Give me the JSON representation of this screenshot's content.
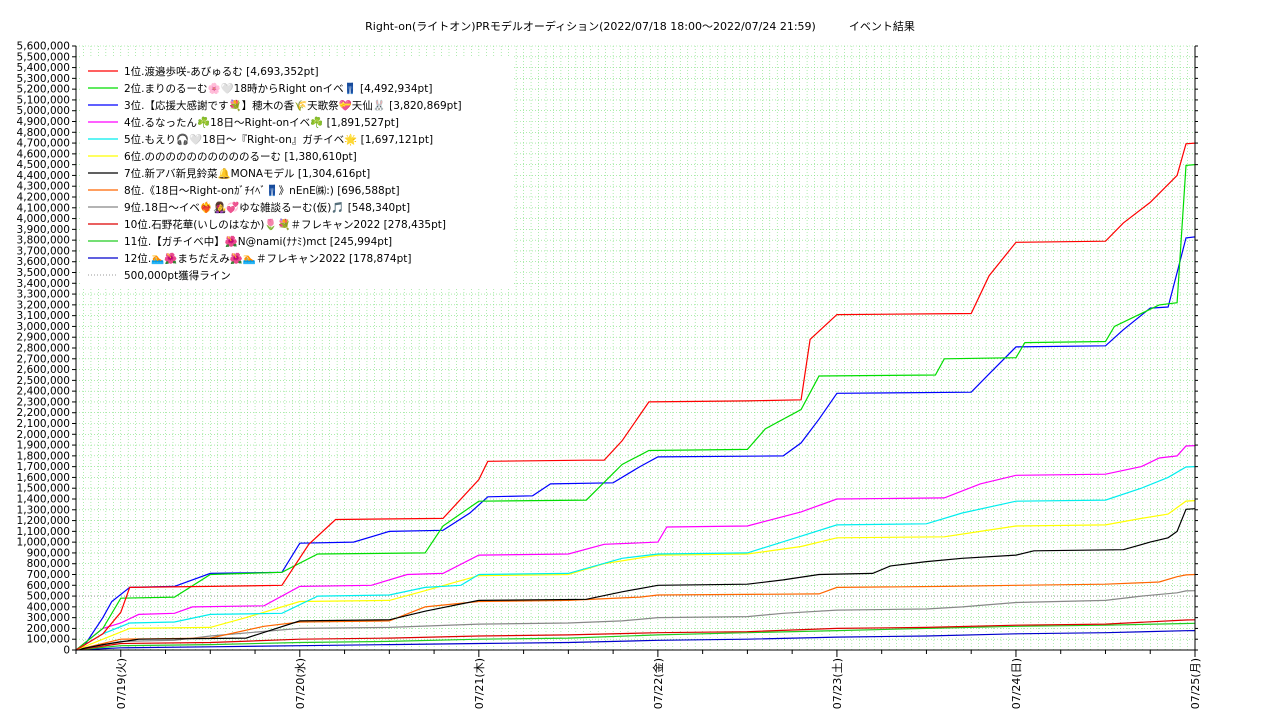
{
  "chart_data": {
    "type": "line",
    "title": "Right-on(ライトオン)PRモデルオーディション(2022/07/18 18:00～2022/07/24 21:59)　　　イベント結果",
    "xlabel": "",
    "ylabel": "",
    "x_ticks": [
      "07/19(火)",
      "07/20(水)",
      "07/21(木)",
      "07/22(金)",
      "07/23(土)",
      "07/24(日)",
      "07/25(月)"
    ],
    "xlim_days": [
      -0.25,
      6
    ],
    "ylim": [
      0,
      5600000
    ],
    "y_step": 100000,
    "grid": true,
    "legend_position": "top-left",
    "reference_line": {
      "label": "500,000pt獲得ライン",
      "value": 500000,
      "color": "#999999"
    },
    "series": [
      {
        "name": "1位.渡邉歩咲-あびゅるむ [4,693,352pt]",
        "color": "#ff0000",
        "points": [
          [
            -0.25,
            0
          ],
          [
            -0.2,
            50000
          ],
          [
            -0.1,
            150000
          ],
          [
            0,
            350000
          ],
          [
            0.05,
            580000
          ],
          [
            0.5,
            590000
          ],
          [
            0.9,
            600000
          ],
          [
            1.05,
            980000
          ],
          [
            1.2,
            1210000
          ],
          [
            1.8,
            1220000
          ],
          [
            2.0,
            1580000
          ],
          [
            2.05,
            1750000
          ],
          [
            2.6,
            1760000
          ],
          [
            2.7,
            1760000
          ],
          [
            2.8,
            1940000
          ],
          [
            2.95,
            2300000
          ],
          [
            3.5,
            2310000
          ],
          [
            3.8,
            2320000
          ],
          [
            3.85,
            2880000
          ],
          [
            4.0,
            3110000
          ],
          [
            4.75,
            3120000
          ],
          [
            4.85,
            3470000
          ],
          [
            5.0,
            3780000
          ],
          [
            5.5,
            3790000
          ],
          [
            5.6,
            3960000
          ],
          [
            5.75,
            4150000
          ],
          [
            5.9,
            4400000
          ],
          [
            5.95,
            4693352
          ],
          [
            6,
            4700000
          ]
        ]
      },
      {
        "name": "2位.まりのるーむ🌸🤍18時からRight onイベ👖 [4,492,934pt]",
        "color": "#00dd00",
        "points": [
          [
            -0.25,
            0
          ],
          [
            -0.1,
            200000
          ],
          [
            0,
            480000
          ],
          [
            0.3,
            490000
          ],
          [
            0.5,
            700000
          ],
          [
            0.9,
            720000
          ],
          [
            1.1,
            890000
          ],
          [
            1.7,
            900000
          ],
          [
            1.8,
            1150000
          ],
          [
            2.0,
            1380000
          ],
          [
            2.6,
            1390000
          ],
          [
            2.8,
            1720000
          ],
          [
            2.95,
            1850000
          ],
          [
            3.5,
            1860000
          ],
          [
            3.6,
            2050000
          ],
          [
            3.8,
            2230000
          ],
          [
            3.9,
            2540000
          ],
          [
            4.55,
            2550000
          ],
          [
            4.6,
            2700000
          ],
          [
            5.0,
            2710000
          ],
          [
            5.05,
            2850000
          ],
          [
            5.5,
            2860000
          ],
          [
            5.55,
            3000000
          ],
          [
            5.8,
            3200000
          ],
          [
            5.9,
            3220000
          ],
          [
            5.95,
            4492934
          ],
          [
            6,
            4500000
          ]
        ]
      },
      {
        "name": "3位.【応援大感謝です💐】穂木の香🌾天歌祭💝天仙🐰 [3,820,869pt]",
        "color": "#0000ff",
        "points": [
          [
            -0.25,
            0
          ],
          [
            -0.2,
            50000
          ],
          [
            -0.1,
            300000
          ],
          [
            -0.05,
            450000
          ],
          [
            0.05,
            580000
          ],
          [
            0.3,
            590000
          ],
          [
            0.5,
            710000
          ],
          [
            0.9,
            720000
          ],
          [
            1.0,
            990000
          ],
          [
            1.3,
            1000000
          ],
          [
            1.5,
            1100000
          ],
          [
            1.8,
            1110000
          ],
          [
            1.95,
            1270000
          ],
          [
            2.05,
            1420000
          ],
          [
            2.3,
            1430000
          ],
          [
            2.4,
            1540000
          ],
          [
            2.75,
            1550000
          ],
          [
            2.9,
            1700000
          ],
          [
            3.0,
            1790000
          ],
          [
            3.7,
            1800000
          ],
          [
            3.8,
            1920000
          ],
          [
            3.9,
            2140000
          ],
          [
            4.0,
            2380000
          ],
          [
            4.75,
            2390000
          ],
          [
            4.85,
            2560000
          ],
          [
            5.0,
            2810000
          ],
          [
            5.5,
            2820000
          ],
          [
            5.6,
            2970000
          ],
          [
            5.75,
            3170000
          ],
          [
            5.85,
            3180000
          ],
          [
            5.9,
            3500000
          ],
          [
            5.95,
            3820869
          ],
          [
            6,
            3830000
          ]
        ]
      },
      {
        "name": "4位.るなったん☘️18日～Right-onイベ☘️ [1,891,527pt]",
        "color": "#ff00ff",
        "points": [
          [
            -0.25,
            0
          ],
          [
            -0.1,
            200000
          ],
          [
            0,
            250000
          ],
          [
            0.1,
            330000
          ],
          [
            0.3,
            340000
          ],
          [
            0.4,
            400000
          ],
          [
            0.8,
            410000
          ],
          [
            1.0,
            590000
          ],
          [
            1.4,
            600000
          ],
          [
            1.6,
            700000
          ],
          [
            1.8,
            710000
          ],
          [
            2.0,
            880000
          ],
          [
            2.5,
            890000
          ],
          [
            2.7,
            980000
          ],
          [
            3.0,
            1000000
          ],
          [
            3.05,
            1140000
          ],
          [
            3.5,
            1150000
          ],
          [
            3.8,
            1280000
          ],
          [
            4.0,
            1400000
          ],
          [
            4.6,
            1410000
          ],
          [
            4.8,
            1540000
          ],
          [
            5.0,
            1620000
          ],
          [
            5.5,
            1630000
          ],
          [
            5.7,
            1700000
          ],
          [
            5.8,
            1780000
          ],
          [
            5.9,
            1800000
          ],
          [
            5.95,
            1891527
          ],
          [
            6,
            1895000
          ]
        ]
      },
      {
        "name": "5位.もえり🎧🤍18日～『Right-on』ガチイベ🌟 [1,697,121pt]",
        "color": "#00eeee",
        "points": [
          [
            -0.25,
            0
          ],
          [
            -0.1,
            150000
          ],
          [
            0.05,
            250000
          ],
          [
            0.3,
            260000
          ],
          [
            0.5,
            330000
          ],
          [
            0.9,
            340000
          ],
          [
            1.1,
            500000
          ],
          [
            1.5,
            510000
          ],
          [
            1.7,
            580000
          ],
          [
            1.9,
            600000
          ],
          [
            2.0,
            700000
          ],
          [
            2.5,
            710000
          ],
          [
            2.8,
            850000
          ],
          [
            3.0,
            890000
          ],
          [
            3.5,
            900000
          ],
          [
            3.75,
            1030000
          ],
          [
            4.0,
            1160000
          ],
          [
            4.5,
            1170000
          ],
          [
            4.7,
            1270000
          ],
          [
            5.0,
            1380000
          ],
          [
            5.5,
            1390000
          ],
          [
            5.7,
            1500000
          ],
          [
            5.85,
            1600000
          ],
          [
            5.95,
            1697121
          ],
          [
            6,
            1700000
          ]
        ]
      },
      {
        "name": "6位.ののののののののののるーむ [1,380,610pt]",
        "color": "#ffff00",
        "points": [
          [
            -0.25,
            0
          ],
          [
            -0.1,
            100000
          ],
          [
            0.05,
            200000
          ],
          [
            0.5,
            210000
          ],
          [
            0.7,
            300000
          ],
          [
            1.0,
            450000
          ],
          [
            1.5,
            460000
          ],
          [
            1.7,
            550000
          ],
          [
            2.0,
            690000
          ],
          [
            2.5,
            700000
          ],
          [
            2.7,
            800000
          ],
          [
            3.0,
            880000
          ],
          [
            3.5,
            890000
          ],
          [
            3.8,
            960000
          ],
          [
            4.0,
            1040000
          ],
          [
            4.6,
            1050000
          ],
          [
            4.8,
            1100000
          ],
          [
            5.0,
            1150000
          ],
          [
            5.5,
            1160000
          ],
          [
            5.7,
            1220000
          ],
          [
            5.85,
            1260000
          ],
          [
            5.95,
            1380610
          ],
          [
            6,
            1385000
          ]
        ]
      },
      {
        "name": "7位.新アバ新見鈴菜🔔MONAモデル [1,304,616pt]",
        "color": "#000000",
        "points": [
          [
            -0.25,
            0
          ],
          [
            -0.1,
            50000
          ],
          [
            0.1,
            100000
          ],
          [
            0.7,
            110000
          ],
          [
            1.0,
            270000
          ],
          [
            1.5,
            280000
          ],
          [
            1.7,
            360000
          ],
          [
            2.0,
            460000
          ],
          [
            2.6,
            470000
          ],
          [
            2.8,
            540000
          ],
          [
            3.0,
            600000
          ],
          [
            3.5,
            610000
          ],
          [
            3.7,
            650000
          ],
          [
            3.9,
            700000
          ],
          [
            4.2,
            710000
          ],
          [
            4.3,
            780000
          ],
          [
            4.5,
            820000
          ],
          [
            4.7,
            850000
          ],
          [
            5.0,
            880000
          ],
          [
            5.1,
            920000
          ],
          [
            5.6,
            930000
          ],
          [
            5.75,
            1000000
          ],
          [
            5.85,
            1040000
          ],
          [
            5.9,
            1100000
          ],
          [
            5.95,
            1304616
          ],
          [
            6,
            1310000
          ]
        ]
      },
      {
        "name": "8位.《18日～Right-onｶﾞﾁｲﾍﾞ👖》nEnE㈱:) [696,588pt]",
        "color": "#ff6600",
        "points": [
          [
            -0.25,
            0
          ],
          [
            0,
            100000
          ],
          [
            0.5,
            110000
          ],
          [
            0.8,
            220000
          ],
          [
            1.0,
            260000
          ],
          [
            1.5,
            270000
          ],
          [
            1.7,
            400000
          ],
          [
            2.0,
            450000
          ],
          [
            2.5,
            460000
          ],
          [
            2.9,
            490000
          ],
          [
            3.0,
            510000
          ],
          [
            3.9,
            520000
          ],
          [
            4.0,
            580000
          ],
          [
            4.6,
            590000
          ],
          [
            5.0,
            600000
          ],
          [
            5.5,
            610000
          ],
          [
            5.8,
            630000
          ],
          [
            5.9,
            680000
          ],
          [
            5.95,
            696588
          ],
          [
            6,
            700000
          ]
        ]
      },
      {
        "name": "9位.18日～イベ❤️‍🔥👩‍🎤💞ゆな雑談るーむ(仮)🎵 [548,340pt]",
        "color": "#888888",
        "points": [
          [
            -0.25,
            0
          ],
          [
            0,
            80000
          ],
          [
            0.3,
            90000
          ],
          [
            0.5,
            130000
          ],
          [
            1.0,
            200000
          ],
          [
            1.5,
            210000
          ],
          [
            2.0,
            240000
          ],
          [
            2.5,
            250000
          ],
          [
            2.8,
            270000
          ],
          [
            3.0,
            300000
          ],
          [
            3.5,
            310000
          ],
          [
            3.7,
            340000
          ],
          [
            4.0,
            370000
          ],
          [
            4.5,
            380000
          ],
          [
            4.7,
            400000
          ],
          [
            5.0,
            440000
          ],
          [
            5.5,
            460000
          ],
          [
            5.7,
            500000
          ],
          [
            5.9,
            530000
          ],
          [
            5.95,
            548340
          ],
          [
            6,
            550000
          ]
        ]
      },
      {
        "name": "10位.石野花華(いしのはなか)🌷💐＃フレキャン2022 [278,435pt]",
        "color": "#dd0000",
        "points": [
          [
            -0.25,
            0
          ],
          [
            0,
            60000
          ],
          [
            0.5,
            70000
          ],
          [
            1.0,
            100000
          ],
          [
            1.5,
            110000
          ],
          [
            2.0,
            130000
          ],
          [
            2.5,
            140000
          ],
          [
            3.0,
            160000
          ],
          [
            3.5,
            170000
          ],
          [
            4.0,
            200000
          ],
          [
            4.5,
            210000
          ],
          [
            5.0,
            230000
          ],
          [
            5.5,
            240000
          ],
          [
            5.95,
            278435
          ],
          [
            6,
            280000
          ]
        ]
      },
      {
        "name": "11位.【ガチイベ中】🌺N@nami(ﾅﾅﾐ)mct [245,994pt]",
        "color": "#22cc22",
        "points": [
          [
            -0.25,
            0
          ],
          [
            0,
            40000
          ],
          [
            0.5,
            50000
          ],
          [
            1.0,
            70000
          ],
          [
            1.5,
            80000
          ],
          [
            2.0,
            100000
          ],
          [
            2.5,
            110000
          ],
          [
            3.0,
            140000
          ],
          [
            3.5,
            160000
          ],
          [
            4.0,
            180000
          ],
          [
            4.5,
            200000
          ],
          [
            5.0,
            220000
          ],
          [
            5.5,
            230000
          ],
          [
            5.95,
            245994
          ],
          [
            6,
            248000
          ]
        ]
      },
      {
        "name": "12位.🏊🌺まちだえみ🌺🏊＃フレキャン2022 [178,874pt]",
        "color": "#0000cc",
        "points": [
          [
            -0.25,
            0
          ],
          [
            0,
            20000
          ],
          [
            0.5,
            30000
          ],
          [
            1.0,
            40000
          ],
          [
            1.5,
            50000
          ],
          [
            2.0,
            60000
          ],
          [
            2.5,
            70000
          ],
          [
            3.0,
            90000
          ],
          [
            3.5,
            100000
          ],
          [
            4.0,
            120000
          ],
          [
            4.5,
            130000
          ],
          [
            5.0,
            150000
          ],
          [
            5.5,
            160000
          ],
          [
            5.95,
            178874
          ],
          [
            6,
            180000
          ]
        ]
      }
    ]
  }
}
